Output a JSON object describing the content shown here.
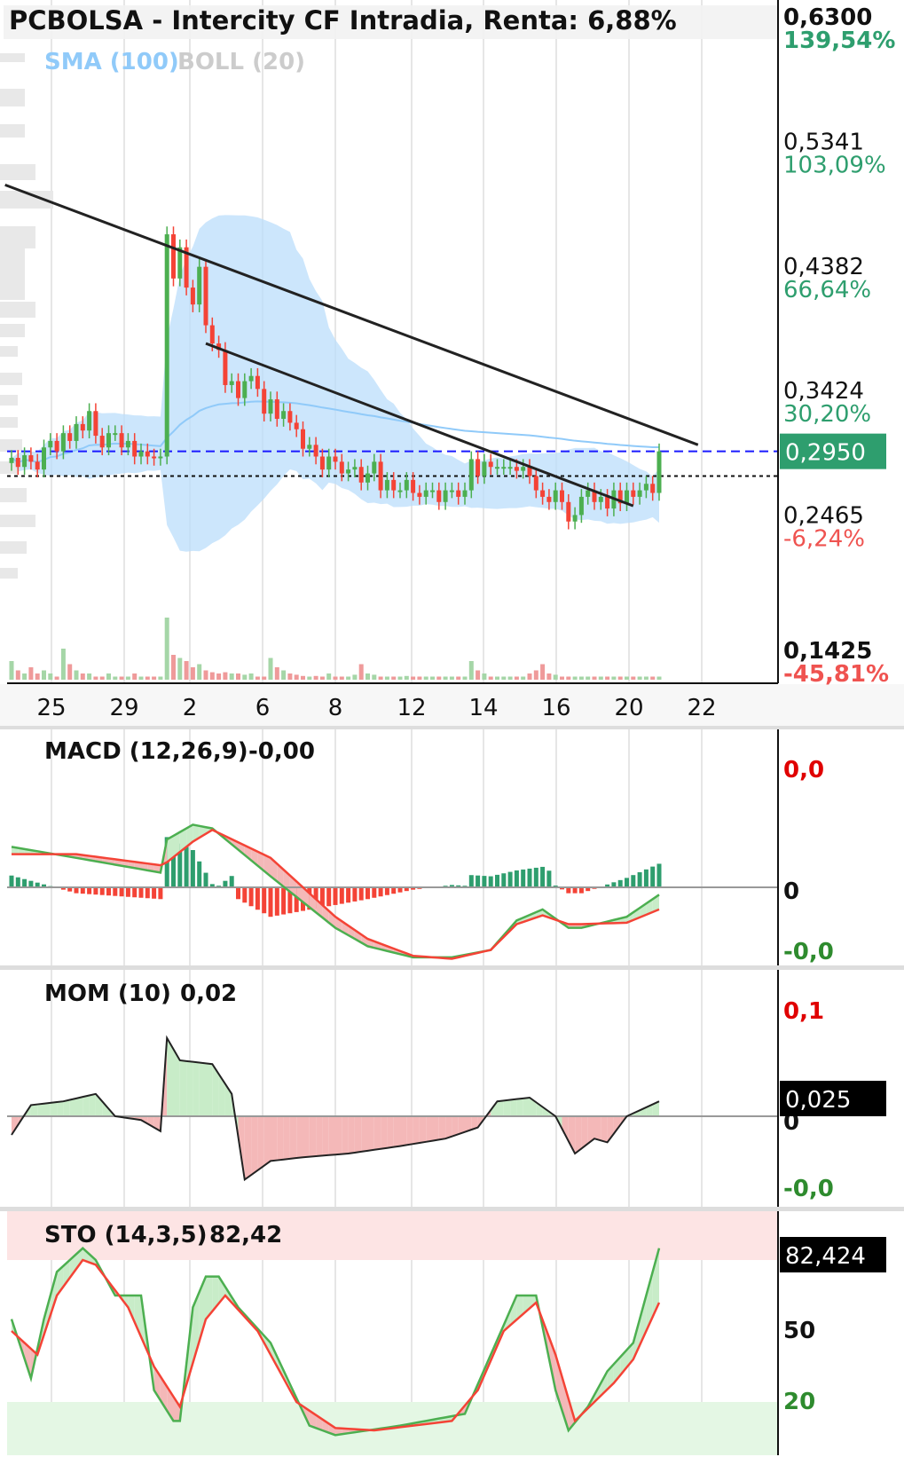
{
  "colors": {
    "up": "#4caf50",
    "down": "#f44336",
    "up_text": "#2e9e6e",
    "down_text": "#ef5350",
    "sma": "#90caf9",
    "boll_fill": "#bbdefb",
    "boll_label": "#cccccc",
    "price_tag": "#2e9e6e",
    "trend": "#222222",
    "dashed_blue": "#1a1aff",
    "grid": "#e6e6e6",
    "macd_hist_up": "#2e9e6e",
    "macd_hist_down": "#f44336",
    "label_red": "#e00000",
    "label_green": "#2e8b2e"
  },
  "chart_data": [
    {
      "panel": "price",
      "type": "candlestick",
      "title": "PCBOLSA - Intercity CF Intradia, Renta: 6,88%",
      "indicators": [
        "SMA (100)",
        "BOLL (20)"
      ],
      "x_ticks": [
        "25",
        "29",
        "2",
        "6",
        "8",
        "12",
        "14",
        "16",
        "20",
        "22"
      ],
      "y_ticks": [
        {
          "value": "0,6300",
          "pct": "139,54%",
          "dir": "up"
        },
        {
          "value": "0,5341",
          "pct": "103,09%",
          "dir": "up"
        },
        {
          "value": "0,4382",
          "pct": "66,64%",
          "dir": "up"
        },
        {
          "value": "0,3424",
          "pct": "30,20%",
          "dir": "up"
        },
        {
          "value": "0,2465",
          "pct": "-6,24%",
          "dir": "down"
        },
        {
          "value": "0,1425",
          "pct": "-45,81%",
          "dir": "down"
        }
      ],
      "ylim": [
        0.1425,
        0.63
      ],
      "last_price": "0,2950",
      "last_price_value": 0.295,
      "reference_price": 0.276,
      "trendlines": [
        {
          "from": [
            -1,
            0.5
          ],
          "to": [
            106,
            0.3
          ]
        },
        {
          "from": [
            30,
            0.378
          ],
          "to": [
            96,
            0.253
          ]
        }
      ],
      "closes": [
        0.29,
        0.283,
        0.292,
        0.287,
        0.281,
        0.298,
        0.303,
        0.295,
        0.309,
        0.303,
        0.316,
        0.311,
        0.326,
        0.307,
        0.298,
        0.309,
        0.309,
        0.298,
        0.303,
        0.291,
        0.295,
        0.291,
        0.29,
        0.291,
        0.462,
        0.428,
        0.452,
        0.421,
        0.408,
        0.437,
        0.392,
        0.378,
        0.373,
        0.346,
        0.349,
        0.336,
        0.349,
        0.353,
        0.343,
        0.324,
        0.335,
        0.32,
        0.326,
        0.317,
        0.312,
        0.297,
        0.3,
        0.291,
        0.281,
        0.291,
        0.287,
        0.278,
        0.281,
        0.283,
        0.271,
        0.278,
        0.287,
        0.265,
        0.273,
        0.265,
        0.265,
        0.273,
        0.263,
        0.26,
        0.265,
        0.265,
        0.256,
        0.265,
        0.265,
        0.26,
        0.265,
        0.289,
        0.276,
        0.287,
        0.283,
        0.283,
        0.283,
        0.283,
        0.28,
        0.283,
        0.276,
        0.265,
        0.26,
        0.256,
        0.265,
        0.256,
        0.241,
        0.246,
        0.26,
        0.265,
        0.256,
        0.26,
        0.251,
        0.265,
        0.255,
        0.265,
        0.26,
        0.265,
        0.27,
        0.263,
        0.295
      ],
      "volume_scale": [
        0.3,
        0.15,
        0.1,
        0.2,
        0.1,
        0.15,
        0.1,
        0.05,
        0.5,
        0.25,
        0.15,
        0.1,
        0.1,
        0.05,
        0.05,
        0.1,
        0.05,
        0.05,
        0.05,
        0.1,
        0.05,
        0.05,
        0.05,
        0.05,
        1.0,
        0.4,
        0.35,
        0.3,
        0.2,
        0.25,
        0.15,
        0.12,
        0.1,
        0.12,
        0.1,
        0.1,
        0.08,
        0.1,
        0.05,
        0.05,
        0.35,
        0.2,
        0.15,
        0.1,
        0.08,
        0.06,
        0.05,
        0.06,
        0.05,
        0.1,
        0.05,
        0.05,
        0.05,
        0.08,
        0.25,
        0.1,
        0.08,
        0.05,
        0.05,
        0.05,
        0.05,
        0.06,
        0.05,
        0.05,
        0.05,
        0.05,
        0.05,
        0.05,
        0.05,
        0.05,
        0.05,
        0.3,
        0.15,
        0.1,
        0.05,
        0.05,
        0.05,
        0.05,
        0.05,
        0.05,
        0.1,
        0.15,
        0.25,
        0.1,
        0.08,
        0.05,
        0.05,
        0.05,
        0.05,
        0.05,
        0.05,
        0.05,
        0.05,
        0.05,
        0.05,
        0.05,
        0.05,
        0.05,
        0.05,
        0.05,
        0.05
      ]
    },
    {
      "panel": "macd",
      "type": "line",
      "label": "MACD (12,26,9)",
      "value": "-0,00",
      "y_ticks": [
        {
          "label": "0,0",
          "color": "red"
        },
        {
          "label": "0",
          "color": "black"
        },
        {
          "label": "-0,0",
          "color": "green"
        }
      ],
      "macd": [
        [
          0,
          0.55
        ],
        [
          10,
          0.4
        ],
        [
          23,
          0.2
        ],
        [
          24,
          0.65
        ],
        [
          28,
          0.85
        ],
        [
          31,
          0.8
        ],
        [
          40,
          0.15
        ],
        [
          50,
          -0.55
        ],
        [
          55,
          -0.8
        ],
        [
          62,
          -0.95
        ],
        [
          68,
          -0.95
        ],
        [
          74,
          -0.85
        ],
        [
          78,
          -0.45
        ],
        [
          82,
          -0.3
        ],
        [
          86,
          -0.55
        ],
        [
          88,
          -0.55
        ],
        [
          95,
          -0.4
        ],
        [
          100,
          -0.1
        ]
      ],
      "signal": [
        [
          0,
          0.45
        ],
        [
          10,
          0.45
        ],
        [
          23,
          0.3
        ],
        [
          24,
          0.34
        ],
        [
          28,
          0.62
        ],
        [
          31,
          0.78
        ],
        [
          40,
          0.4
        ],
        [
          50,
          -0.4
        ],
        [
          55,
          -0.7
        ],
        [
          62,
          -0.93
        ],
        [
          68,
          -0.97
        ],
        [
          74,
          -0.85
        ],
        [
          78,
          -0.5
        ],
        [
          82,
          -0.38
        ],
        [
          86,
          -0.5
        ],
        [
          88,
          -0.5
        ],
        [
          95,
          -0.48
        ],
        [
          100,
          -0.3
        ]
      ]
    },
    {
      "panel": "mom",
      "type": "line",
      "label": "MOM (10)",
      "value": "0,02",
      "y_ticks": [
        {
          "label": "0,1",
          "color": "red"
        },
        {
          "label": "0",
          "color": "black"
        },
        {
          "label": "-0,0",
          "color": "green"
        }
      ],
      "last_tag": "0,025",
      "values": [
        [
          0,
          -0.25
        ],
        [
          3,
          0.15
        ],
        [
          8,
          0.2
        ],
        [
          13,
          0.3
        ],
        [
          16,
          0.0
        ],
        [
          20,
          -0.05
        ],
        [
          23,
          -0.2
        ],
        [
          24,
          1.05
        ],
        [
          26,
          0.75
        ],
        [
          31,
          0.7
        ],
        [
          34,
          0.3
        ],
        [
          36,
          -0.85
        ],
        [
          40,
          -0.6
        ],
        [
          45,
          -0.55
        ],
        [
          52,
          -0.5
        ],
        [
          60,
          -0.4
        ],
        [
          67,
          -0.3
        ],
        [
          72,
          -0.15
        ],
        [
          75,
          0.2
        ],
        [
          80,
          0.25
        ],
        [
          84,
          0.0
        ],
        [
          87,
          -0.5
        ],
        [
          90,
          -0.3
        ],
        [
          92,
          -0.35
        ],
        [
          95,
          0.0
        ],
        [
          100,
          0.2
        ]
      ]
    },
    {
      "panel": "sto",
      "type": "line",
      "label": "STO (14,3,5)",
      "value": "82,42",
      "y_ticks": [
        {
          "label": "50",
          "color": "black"
        },
        {
          "label": "20",
          "color": "green"
        }
      ],
      "last_tag": "82,424",
      "k": [
        [
          0,
          55
        ],
        [
          3,
          30
        ],
        [
          5,
          55
        ],
        [
          7,
          75
        ],
        [
          11,
          85
        ],
        [
          13,
          80
        ],
        [
          16,
          65
        ],
        [
          20,
          65
        ],
        [
          22,
          25
        ],
        [
          25,
          12
        ],
        [
          26,
          12
        ],
        [
          28,
          60
        ],
        [
          30,
          73
        ],
        [
          32,
          73
        ],
        [
          35,
          60
        ],
        [
          40,
          45
        ],
        [
          46,
          10
        ],
        [
          50,
          6
        ],
        [
          55,
          8
        ],
        [
          60,
          10
        ],
        [
          66,
          13
        ],
        [
          70,
          15
        ],
        [
          74,
          40
        ],
        [
          78,
          65
        ],
        [
          81,
          65
        ],
        [
          84,
          25
        ],
        [
          86,
          8
        ],
        [
          89,
          18
        ],
        [
          92,
          33
        ],
        [
          96,
          45
        ],
        [
          100,
          85
        ]
      ],
      "d": [
        [
          0,
          50
        ],
        [
          4,
          40
        ],
        [
          7,
          65
        ],
        [
          11,
          80
        ],
        [
          13,
          78
        ],
        [
          18,
          60
        ],
        [
          22,
          35
        ],
        [
          26,
          18
        ],
        [
          30,
          55
        ],
        [
          33,
          65
        ],
        [
          38,
          50
        ],
        [
          44,
          20
        ],
        [
          50,
          9
        ],
        [
          56,
          8
        ],
        [
          62,
          10
        ],
        [
          68,
          12
        ],
        [
          72,
          25
        ],
        [
          76,
          50
        ],
        [
          81,
          62
        ],
        [
          84,
          40
        ],
        [
          87,
          12
        ],
        [
          90,
          20
        ],
        [
          93,
          28
        ],
        [
          96,
          38
        ],
        [
          100,
          62
        ]
      ]
    }
  ]
}
